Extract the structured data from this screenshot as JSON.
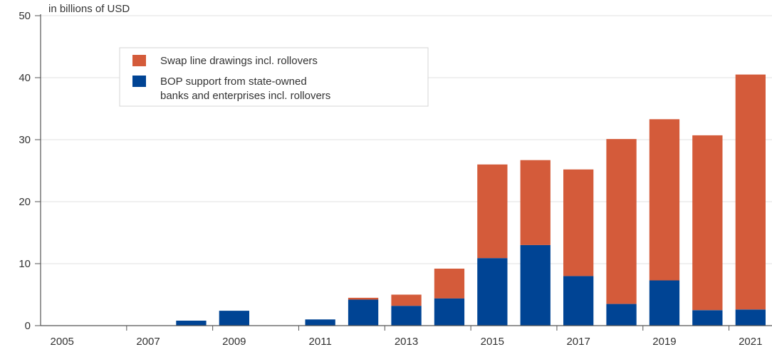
{
  "chart_data": {
    "type": "bar",
    "stacked": true,
    "title": "",
    "unit_label": "in billions of USD",
    "xlabel": "",
    "ylabel": "",
    "ylim": [
      0,
      50
    ],
    "yticks": [
      0,
      10,
      20,
      30,
      40,
      50
    ],
    "grid": true,
    "categories": [
      "2005",
      "2006",
      "2007",
      "2008",
      "2009",
      "2010",
      "2011",
      "2012",
      "2013",
      "2014",
      "2015",
      "2016",
      "2017",
      "2018",
      "2019",
      "2020",
      "2021"
    ],
    "xtick_labels": [
      "2005",
      "2007",
      "2009",
      "2011",
      "2013",
      "2015",
      "2017",
      "2019",
      "2021"
    ],
    "series": [
      {
        "name": "BOP support from state-owned banks and enterprises incl. rollovers",
        "legend_lines": [
          "BOP support from state-owned",
          "banks and enterprises incl. rollovers"
        ],
        "color": "#004494",
        "values": [
          0,
          0,
          0,
          0.8,
          2.4,
          0,
          1.0,
          4.2,
          3.2,
          4.4,
          10.9,
          13.0,
          8.0,
          3.5,
          7.3,
          2.5,
          2.6
        ]
      },
      {
        "name": "Swap line drawings incl. rollovers",
        "legend_lines": [
          "Swap line drawings incl. rollovers"
        ],
        "color": "#d45b3a",
        "values": [
          0,
          0,
          0,
          0,
          0,
          0,
          0,
          0.3,
          1.8,
          4.8,
          15.1,
          13.7,
          17.2,
          26.6,
          26.0,
          28.2,
          37.9
        ]
      }
    ],
    "legend": {
      "placement": "top-left",
      "order": [
        "Swap line drawings incl. rollovers",
        "BOP support from state-owned banks and enterprises incl. rollovers"
      ]
    },
    "colors": {
      "axis": "#555555",
      "grid": "#e0e0e0",
      "legend_border": "#d6d6d6"
    }
  }
}
